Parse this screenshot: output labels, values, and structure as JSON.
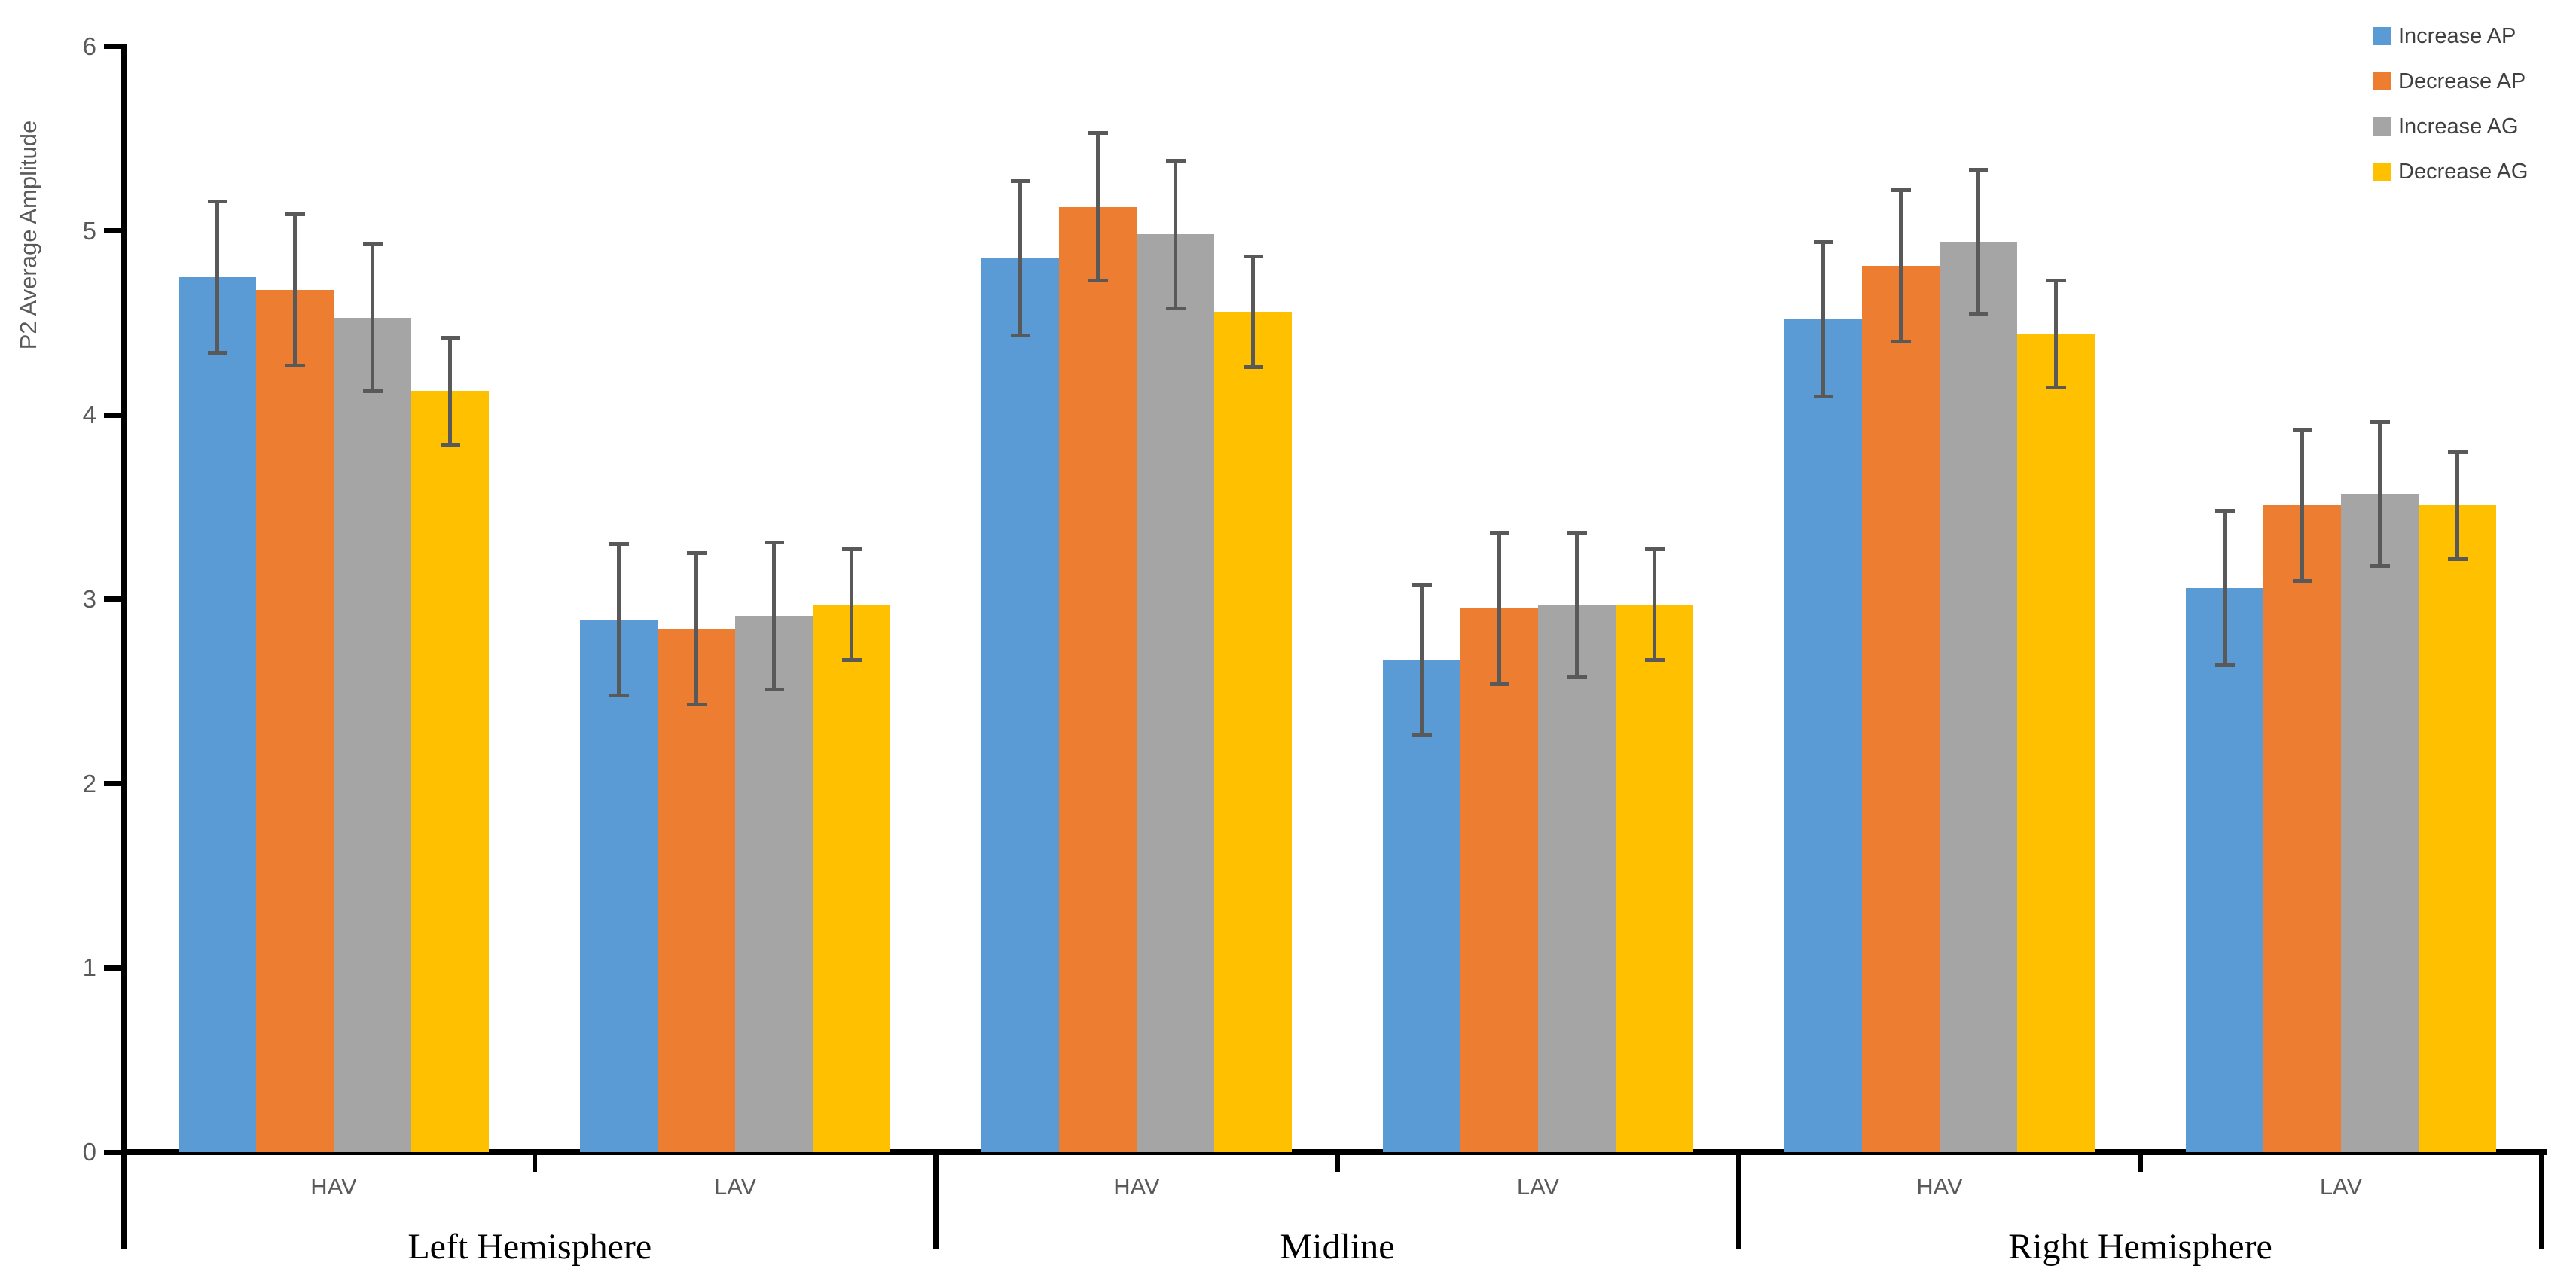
{
  "chart_data": {
    "type": "bar",
    "title": "",
    "xlabel": "",
    "ylabel": "P2 Average Amplitude",
    "ylim": [
      0,
      6
    ],
    "yticks": [
      "0",
      "1",
      "2",
      "3",
      "4",
      "5",
      "6"
    ],
    "grid": false,
    "legend_position": "top-right",
    "categories": [
      "HAV",
      "LAV",
      "HAV",
      "LAV",
      "HAV",
      "LAV"
    ],
    "groups": [
      {
        "label": "Left Hemisphere",
        "category_indexes": [
          0,
          1
        ]
      },
      {
        "label": "Midline",
        "category_indexes": [
          2,
          3
        ]
      },
      {
        "label": "Right Hemisphere",
        "category_indexes": [
          4,
          5
        ]
      }
    ],
    "series": [
      {
        "name": "Increase AP",
        "color": "#5B9BD5",
        "values": [
          4.75,
          2.89,
          4.85,
          2.67,
          4.52,
          3.06
        ],
        "errors": [
          0.41,
          0.41,
          0.42,
          0.41,
          0.42,
          0.42
        ]
      },
      {
        "name": "Decrease AP",
        "color": "#ED7D31",
        "values": [
          4.68,
          2.84,
          5.13,
          2.95,
          4.81,
          3.51
        ],
        "errors": [
          0.41,
          0.41,
          0.4,
          0.41,
          0.41,
          0.41
        ]
      },
      {
        "name": "Increase AG",
        "color": "#A5A5A5",
        "values": [
          4.53,
          2.91,
          4.98,
          2.97,
          4.94,
          3.57
        ],
        "errors": [
          0.4,
          0.4,
          0.4,
          0.39,
          0.39,
          0.39
        ]
      },
      {
        "name": "Decrease AG",
        "color": "#FFC000",
        "values": [
          4.13,
          2.97,
          4.56,
          2.97,
          4.44,
          3.51
        ],
        "errors": [
          0.29,
          0.3,
          0.3,
          0.3,
          0.29,
          0.29
        ]
      }
    ],
    "colors": {
      "error_bar": "#595959",
      "axis": "#000000",
      "tick_label": "#595959",
      "category_label": "#595959",
      "group_label": "#000000",
      "legend_text": "#404040",
      "background": "#FFFFFF"
    }
  }
}
